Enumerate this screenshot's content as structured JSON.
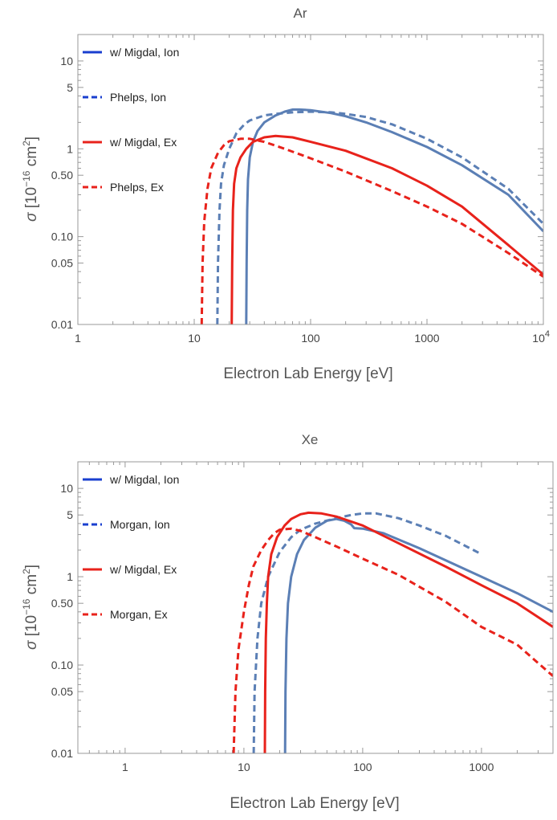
{
  "chart_data": [
    {
      "type": "line",
      "title": "Ar",
      "xlabel": "Electron Lab Energy [eV]",
      "ylabel": "σ [10⁻¹⁶ cm²]",
      "x_scale": "log",
      "y_scale": "log",
      "xlim": [
        1,
        10000
      ],
      "ylim": [
        0.01,
        20
      ],
      "x_ticks": [
        {
          "value": 1,
          "label": "1"
        },
        {
          "value": 10,
          "label": "10"
        },
        {
          "value": 100,
          "label": "100"
        },
        {
          "value": 1000,
          "label": "1000"
        },
        {
          "value": 10000,
          "label": "10",
          "sup": "4"
        }
      ],
      "y_ticks": [
        {
          "value": 0.01,
          "label": "0.01"
        },
        {
          "value": 0.05,
          "label": "0.05"
        },
        {
          "value": 0.1,
          "label": "0.10"
        },
        {
          "value": 0.5,
          "label": "0.50"
        },
        {
          "value": 1,
          "label": "1"
        },
        {
          "value": 5,
          "label": "5"
        },
        {
          "value": 10,
          "label": "10"
        }
      ],
      "legend_position": "top-left",
      "series": [
        {
          "name": "w/ Migdal, Ion",
          "color": "#5b7fb5",
          "legend_color": "#1a3fcf",
          "dash": "solid",
          "points": [
            [
              28,
              0.01
            ],
            [
              28.2,
              0.05
            ],
            [
              28.5,
              0.2
            ],
            [
              29,
              0.45
            ],
            [
              30,
              0.8
            ],
            [
              32,
              1.2
            ],
            [
              35,
              1.6
            ],
            [
              40,
              2.0
            ],
            [
              50,
              2.4
            ],
            [
              60,
              2.65
            ],
            [
              70,
              2.8
            ],
            [
              80,
              2.8
            ],
            [
              100,
              2.75
            ],
            [
              150,
              2.55
            ],
            [
              200,
              2.35
            ],
            [
              300,
              2.0
            ],
            [
              500,
              1.55
            ],
            [
              1000,
              1.05
            ],
            [
              2000,
              0.65
            ],
            [
              5000,
              0.3
            ],
            [
              10000,
              0.115
            ]
          ]
        },
        {
          "name": "Phelps, Ion",
          "color": "#5b7fb5",
          "legend_color": "#1a3fcf",
          "dash": "dashed",
          "points": [
            [
              15.8,
              0.01
            ],
            [
              16,
              0.05
            ],
            [
              16.5,
              0.2
            ],
            [
              17,
              0.4
            ],
            [
              18,
              0.65
            ],
            [
              20,
              1.0
            ],
            [
              23,
              1.5
            ],
            [
              27,
              1.9
            ],
            [
              30,
              2.1
            ],
            [
              40,
              2.4
            ],
            [
              50,
              2.5
            ],
            [
              70,
              2.6
            ],
            [
              100,
              2.65
            ],
            [
              150,
              2.6
            ],
            [
              200,
              2.5
            ],
            [
              300,
              2.3
            ],
            [
              500,
              1.9
            ],
            [
              1000,
              1.3
            ],
            [
              2000,
              0.8
            ],
            [
              5000,
              0.35
            ],
            [
              10000,
              0.14
            ]
          ]
        },
        {
          "name": "w/ Migdal, Ex",
          "color": "#e8221b",
          "legend_color": "#e8221b",
          "dash": "solid",
          "points": [
            [
              21,
              0.01
            ],
            [
              21.2,
              0.05
            ],
            [
              21.5,
              0.2
            ],
            [
              22,
              0.4
            ],
            [
              23,
              0.6
            ],
            [
              25,
              0.8
            ],
            [
              28,
              1.0
            ],
            [
              32,
              1.2
            ],
            [
              40,
              1.35
            ],
            [
              50,
              1.4
            ],
            [
              70,
              1.35
            ],
            [
              100,
              1.2
            ],
            [
              200,
              0.95
            ],
            [
              500,
              0.6
            ],
            [
              1000,
              0.38
            ],
            [
              2000,
              0.22
            ],
            [
              5000,
              0.08
            ],
            [
              10000,
              0.037
            ]
          ]
        },
        {
          "name": "Phelps, Ex",
          "color": "#e8221b",
          "legend_color": "#e8221b",
          "dash": "dashed",
          "points": [
            [
              11.6,
              0.01
            ],
            [
              11.8,
              0.05
            ],
            [
              12.2,
              0.15
            ],
            [
              13,
              0.35
            ],
            [
              14,
              0.6
            ],
            [
              16,
              0.9
            ],
            [
              18,
              1.1
            ],
            [
              20,
              1.22
            ],
            [
              25,
              1.3
            ],
            [
              30,
              1.3
            ],
            [
              40,
              1.2
            ],
            [
              60,
              1.0
            ],
            [
              100,
              0.78
            ],
            [
              200,
              0.55
            ],
            [
              500,
              0.33
            ],
            [
              1000,
              0.22
            ],
            [
              2000,
              0.14
            ],
            [
              5000,
              0.065
            ],
            [
              10000,
              0.035
            ]
          ]
        }
      ]
    },
    {
      "type": "line",
      "title": "Xe",
      "xlabel": "Electron Lab Energy [eV]",
      "ylabel": "σ [10⁻¹⁶ cm²]",
      "x_scale": "log",
      "y_scale": "log",
      "xlim": [
        0.4,
        4000
      ],
      "ylim": [
        0.01,
        20
      ],
      "x_ticks": [
        {
          "value": 1,
          "label": "1"
        },
        {
          "value": 10,
          "label": "10"
        },
        {
          "value": 100,
          "label": "100"
        },
        {
          "value": 1000,
          "label": "1000"
        }
      ],
      "y_ticks": [
        {
          "value": 0.01,
          "label": "0.01"
        },
        {
          "value": 0.05,
          "label": "0.05"
        },
        {
          "value": 0.1,
          "label": "0.10"
        },
        {
          "value": 0.5,
          "label": "0.50"
        },
        {
          "value": 1,
          "label": "1"
        },
        {
          "value": 5,
          "label": "5"
        },
        {
          "value": 10,
          "label": "10"
        }
      ],
      "legend_position": "top-left",
      "series": [
        {
          "name": "w/ Migdal, Ion",
          "color": "#5b7fb5",
          "legend_color": "#1a3fcf",
          "dash": "solid",
          "points": [
            [
              22.2,
              0.01
            ],
            [
              22.4,
              0.05
            ],
            [
              22.8,
              0.2
            ],
            [
              23.5,
              0.5
            ],
            [
              25,
              1.0
            ],
            [
              28,
              1.8
            ],
            [
              32,
              2.6
            ],
            [
              40,
              3.6
            ],
            [
              50,
              4.3
            ],
            [
              60,
              4.5
            ],
            [
              70,
              4.3
            ],
            [
              80,
              3.9
            ],
            [
              85,
              3.55
            ],
            [
              100,
              3.5
            ],
            [
              150,
              3.1
            ],
            [
              300,
              2.1
            ],
            [
              1000,
              1.0
            ],
            [
              2000,
              0.65
            ],
            [
              4000,
              0.4
            ]
          ]
        },
        {
          "name": "Morgan, Ion",
          "color": "#5b7fb5",
          "legend_color": "#1a3fcf",
          "dash": "dashed",
          "points": [
            [
              12.1,
              0.01
            ],
            [
              12.3,
              0.05
            ],
            [
              13,
              0.2
            ],
            [
              14,
              0.5
            ],
            [
              16,
              1.0
            ],
            [
              20,
              1.9
            ],
            [
              25,
              2.8
            ],
            [
              30,
              3.4
            ],
            [
              40,
              4.0
            ],
            [
              60,
              4.6
            ],
            [
              80,
              5.0
            ],
            [
              100,
              5.2
            ],
            [
              130,
              5.2
            ],
            [
              200,
              4.6
            ],
            [
              300,
              3.8
            ],
            [
              500,
              2.9
            ],
            [
              1000,
              1.8
            ]
          ]
        },
        {
          "name": "w/ Migdal, Ex",
          "color": "#e8221b",
          "legend_color": "#e8221b",
          "dash": "solid",
          "points": [
            [
              15,
              0.01
            ],
            [
              15.1,
              0.05
            ],
            [
              15.3,
              0.2
            ],
            [
              15.6,
              0.5
            ],
            [
              16,
              1.0
            ],
            [
              17,
              1.8
            ],
            [
              19,
              2.8
            ],
            [
              22,
              3.8
            ],
            [
              25,
              4.5
            ],
            [
              30,
              5.1
            ],
            [
              35,
              5.3
            ],
            [
              45,
              5.2
            ],
            [
              60,
              4.8
            ],
            [
              100,
              3.8
            ],
            [
              200,
              2.4
            ],
            [
              500,
              1.3
            ],
            [
              1000,
              0.8
            ],
            [
              2000,
              0.5
            ],
            [
              4000,
              0.27
            ]
          ]
        },
        {
          "name": "Morgan, Ex",
          "color": "#e8221b",
          "legend_color": "#e8221b",
          "dash": "dashed",
          "points": [
            [
              8.2,
              0.01
            ],
            [
              8.5,
              0.05
            ],
            [
              9,
              0.15
            ],
            [
              10,
              0.4
            ],
            [
              11,
              0.8
            ],
            [
              12,
              1.3
            ],
            [
              14,
              2.0
            ],
            [
              16,
              2.6
            ],
            [
              18,
              3.1
            ],
            [
              20,
              3.4
            ],
            [
              25,
              3.5
            ],
            [
              30,
              3.3
            ],
            [
              40,
              2.8
            ],
            [
              60,
              2.2
            ],
            [
              100,
              1.6
            ],
            [
              200,
              1.05
            ],
            [
              500,
              0.52
            ],
            [
              1000,
              0.27
            ],
            [
              2000,
              0.17
            ],
            [
              4000,
              0.075
            ]
          ]
        }
      ]
    }
  ]
}
